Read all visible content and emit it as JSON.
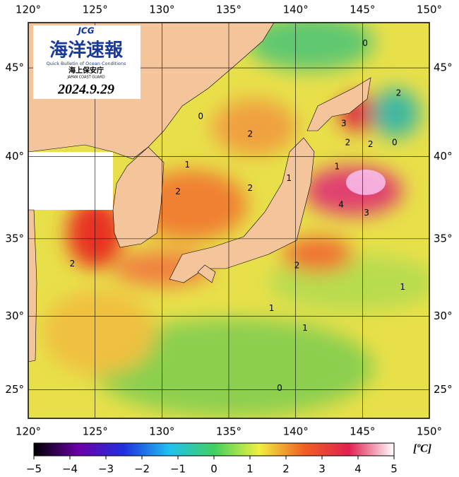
{
  "header": {
    "logo": "JCG",
    "title": "海洋速報",
    "subtitle": "Quick Bulletin of Ocean Conditions",
    "agency": "海上保安庁",
    "agency_en": "JAPAN COAST GUARD",
    "date": "2024.9.29"
  },
  "map": {
    "projection": "mercator",
    "xlim": [
      120,
      150
    ],
    "ylim": [
      23,
      47.4
    ],
    "grid": true,
    "xticks": [
      {
        "value": 120,
        "label": "120°"
      },
      {
        "value": 125,
        "label": "125°"
      },
      {
        "value": 130,
        "label": "130°"
      },
      {
        "value": 135,
        "label": "135°"
      },
      {
        "value": 140,
        "label": "140°"
      },
      {
        "value": 145,
        "label": "145°"
      },
      {
        "value": 150,
        "label": "150°"
      }
    ],
    "yticks": [
      {
        "value": 25,
        "label": "25°"
      },
      {
        "value": 30,
        "label": "30°"
      },
      {
        "value": 35,
        "label": "35°"
      },
      {
        "value": 40,
        "label": "40°"
      },
      {
        "value": 45,
        "label": "45°"
      }
    ],
    "contour_labels": [
      {
        "value": 0,
        "lon": 145.2,
        "lat": 46.3
      },
      {
        "value": 2,
        "lon": 147.7,
        "lat": 43.6
      },
      {
        "value": 3,
        "lon": 143.6,
        "lat": 41.9
      },
      {
        "value": 2,
        "lon": 143.9,
        "lat": 40.8
      },
      {
        "value": 2,
        "lon": 145.6,
        "lat": 40.7
      },
      {
        "value": 0,
        "lon": 147.4,
        "lat": 40.8
      },
      {
        "value": 0,
        "lon": 132.9,
        "lat": 42.3
      },
      {
        "value": 2,
        "lon": 136.6,
        "lat": 41.3
      },
      {
        "value": 1,
        "lon": 131.9,
        "lat": 39.5
      },
      {
        "value": 2,
        "lon": 131.2,
        "lat": 37.9
      },
      {
        "value": 2,
        "lon": 136.6,
        "lat": 38.1
      },
      {
        "value": 1,
        "lon": 139.5,
        "lat": 38.7
      },
      {
        "value": 1,
        "lon": 143.1,
        "lat": 39.4
      },
      {
        "value": 4,
        "lon": 143.4,
        "lat": 37.1
      },
      {
        "value": 3,
        "lon": 145.3,
        "lat": 36.6
      },
      {
        "value": 2,
        "lon": 123.3,
        "lat": 33.4
      },
      {
        "value": 2,
        "lon": 140.1,
        "lat": 33.3
      },
      {
        "value": 1,
        "lon": 148.0,
        "lat": 31.9
      },
      {
        "value": 1,
        "lon": 138.2,
        "lat": 30.5
      },
      {
        "value": 1,
        "lon": 140.7,
        "lat": 29.2
      },
      {
        "value": 0,
        "lon": 138.8,
        "lat": 25.1
      }
    ]
  },
  "colorbar": {
    "lim": [
      -5,
      5
    ],
    "unit": "[ºC]",
    "colors": [
      "#000000",
      "#6a00a8",
      "#2030e0",
      "#20c0f0",
      "#40d060",
      "#f0f040",
      "#f06020",
      "#e02050",
      "#ffffff"
    ],
    "ticks": [
      {
        "value": -5,
        "label": "−5"
      },
      {
        "value": -4,
        "label": "−4"
      },
      {
        "value": -3,
        "label": "−3"
      },
      {
        "value": -2,
        "label": "−2"
      },
      {
        "value": -1,
        "label": "−1"
      },
      0,
      1,
      2,
      3,
      4,
      5
    ]
  }
}
